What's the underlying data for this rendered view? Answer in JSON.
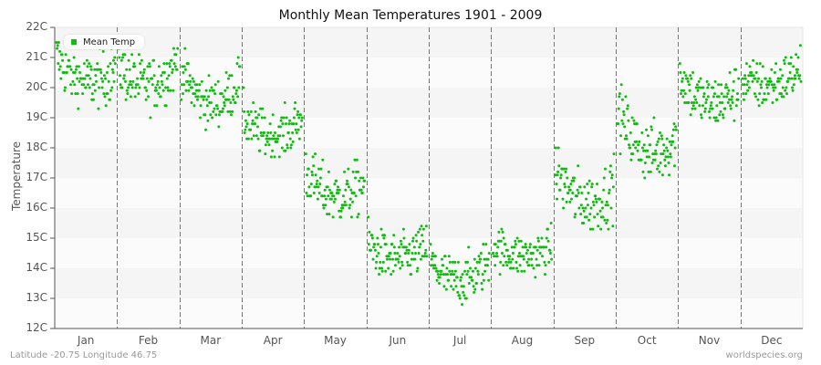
{
  "title": "Monthly Mean Temperatures 1901 - 2009",
  "footer": {
    "left": "Latitude -20.75 Longitude 46.75",
    "right": "worldspecies.org"
  },
  "legend": {
    "label": "Mean Temp",
    "color": "#11bb11"
  },
  "colors": {
    "point": "#11bb11",
    "band_light": "#f5f5f5",
    "band_white": "#fbfbfb",
    "axis": "#555555",
    "divider": "#777777"
  },
  "chart_data": {
    "type": "scatter",
    "title": "Monthly Mean Temperatures 1901 - 2009",
    "xlabel": "",
    "ylabel": "Temperature",
    "ylim": [
      12,
      22
    ],
    "y_ticks": [
      "12C",
      "13C",
      "14C",
      "15C",
      "16C",
      "17C",
      "18C",
      "19C",
      "20C",
      "21C",
      "22C"
    ],
    "categories": [
      "Jan",
      "Feb",
      "Mar",
      "Apr",
      "May",
      "Jun",
      "Jul",
      "Aug",
      "Sep",
      "Oct",
      "Nov",
      "Dec"
    ],
    "grid": "alternating horizontal bands, dashed vertical month dividers",
    "legend_position": "top-left inside plot",
    "series": [
      {
        "name": "Mean Temp",
        "points_per_month": 109,
        "monthly_profile": [
          {
            "month": "Jan",
            "start": 21.0,
            "mid": 20.2,
            "end": 20.6,
            "spread": 0.45,
            "min": 19.3,
            "max": 21.9
          },
          {
            "month": "Feb",
            "start": 20.7,
            "mid": 20.1,
            "end": 20.9,
            "spread": 0.45,
            "min": 18.7,
            "max": 21.3
          },
          {
            "month": "Mar",
            "start": 20.6,
            "mid": 19.5,
            "end": 20.3,
            "spread": 0.4,
            "min": 18.6,
            "max": 21.3
          },
          {
            "month": "Apr",
            "start": 19.0,
            "mid": 18.4,
            "end": 19.0,
            "spread": 0.4,
            "min": 17.7,
            "max": 20.1
          },
          {
            "month": "May",
            "start": 17.2,
            "mid": 16.4,
            "end": 16.9,
            "spread": 0.45,
            "min": 15.7,
            "max": 18.1
          },
          {
            "month": "Jun",
            "start": 14.8,
            "mid": 14.3,
            "end": 14.8,
            "spread": 0.4,
            "min": 13.4,
            "max": 16.2
          },
          {
            "month": "Jul",
            "start": 14.2,
            "mid": 13.6,
            "end": 14.3,
            "spread": 0.4,
            "min": 12.8,
            "max": 15.0
          },
          {
            "month": "Aug",
            "start": 14.8,
            "mid": 14.4,
            "end": 14.7,
            "spread": 0.35,
            "min": 13.4,
            "max": 15.9
          },
          {
            "month": "Sep",
            "start": 17.3,
            "mid": 16.2,
            "end": 16.7,
            "spread": 0.5,
            "min": 15.0,
            "max": 18.6
          },
          {
            "month": "Oct",
            "start": 19.3,
            "mid": 17.9,
            "end": 18.4,
            "spread": 0.5,
            "min": 17.0,
            "max": 20.3
          },
          {
            "month": "Nov",
            "start": 20.4,
            "mid": 19.5,
            "end": 20.0,
            "spread": 0.45,
            "min": 18.8,
            "max": 21.7
          },
          {
            "month": "Dec",
            "start": 20.3,
            "mid": 20.1,
            "end": 20.7,
            "spread": 0.4,
            "min": 19.4,
            "max": 21.6
          }
        ]
      }
    ]
  }
}
